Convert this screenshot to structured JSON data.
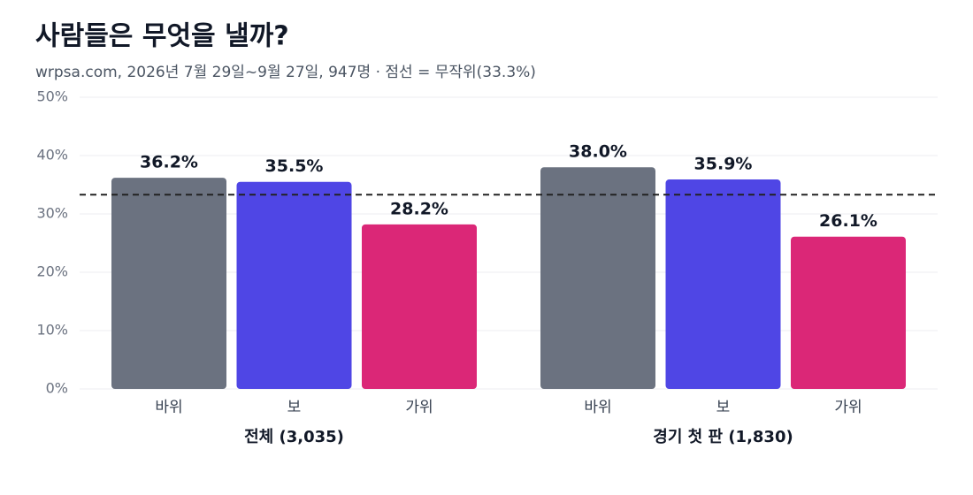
{
  "chart_data": {
    "type": "grouped_bar",
    "title": "사람들은 무엇을 낼까?",
    "subtitle": "wrpsa.com, 2026년 7월 29일~9월 27일, 947명 · 점선 = 무작위(33.3%)",
    "colors": [
      "#6b7280",
      "#4f46e5",
      "#db2777"
    ],
    "groups": [
      {
        "name": "전체 (3,035)",
        "categories": [
          "바위",
          "보",
          "가위"
        ],
        "values": [
          36.2,
          35.5,
          28.2
        ],
        "value_labels": [
          "36.2%",
          "35.5%",
          "28.2%"
        ]
      },
      {
        "name": "경기 첫 판 (1,830)",
        "categories": [
          "바위",
          "보",
          "가위"
        ],
        "values": [
          38.0,
          35.9,
          26.1
        ],
        "value_labels": [
          "38.0%",
          "35.9%",
          "26.1%"
        ]
      }
    ],
    "reference_line": 33.3,
    "ylim": [
      0,
      50
    ],
    "yticks": [
      {
        "value": 0,
        "label": "0%"
      },
      {
        "value": 10,
        "label": "10%"
      },
      {
        "value": 20,
        "label": "20%"
      },
      {
        "value": 30,
        "label": "30%"
      },
      {
        "value": 40,
        "label": "40%"
      },
      {
        "value": 50,
        "label": "50%"
      }
    ],
    "grid": true
  }
}
